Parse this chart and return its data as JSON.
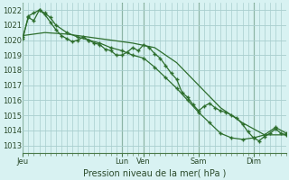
{
  "background_color": "#cce8e8",
  "plot_bg_color": "#d8f2f2",
  "grid_color": "#a8cece",
  "line_color": "#2d6e2d",
  "xlabel_text": "Pression niveau de la mer( hPa )",
  "ylim": [
    1012.5,
    1022.5
  ],
  "yticks": [
    1013,
    1014,
    1015,
    1016,
    1017,
    1018,
    1019,
    1020,
    1021,
    1022
  ],
  "day_labels": [
    "Jeu",
    "Lun",
    "Ven",
    "Sam",
    "Dim"
  ],
  "day_positions": [
    0,
    108,
    132,
    192,
    252
  ],
  "total_hours": 288,
  "vline_color": "#4a7a4a",
  "series1_x": [
    0,
    6,
    12,
    18,
    24,
    30,
    36,
    42,
    48,
    54,
    60,
    66,
    72,
    78,
    84,
    90,
    96,
    102,
    108,
    114,
    120,
    126,
    132,
    138,
    144,
    150,
    156,
    162,
    168,
    174,
    180,
    186,
    192,
    198,
    204,
    210,
    216,
    222,
    228,
    234,
    240,
    246,
    252,
    258,
    264,
    270,
    276,
    282,
    288
  ],
  "series1_y": [
    1020.2,
    1021.5,
    1021.3,
    1022.0,
    1021.7,
    1021.2,
    1020.7,
    1020.3,
    1020.1,
    1019.9,
    1020.0,
    1020.2,
    1020.0,
    1019.8,
    1019.7,
    1019.4,
    1019.3,
    1019.0,
    1019.0,
    1019.2,
    1019.5,
    1019.3,
    1019.7,
    1019.5,
    1019.1,
    1018.8,
    1018.3,
    1017.8,
    1017.4,
    1016.5,
    1016.2,
    1015.7,
    1015.3,
    1015.6,
    1015.8,
    1015.5,
    1015.3,
    1015.2,
    1015.0,
    1014.8,
    1014.4,
    1013.9,
    1013.5,
    1013.3,
    1013.6,
    1013.8,
    1014.1,
    1013.8,
    1013.7
  ],
  "series2_x": [
    0,
    24,
    48,
    72,
    96,
    120,
    144,
    168,
    192,
    216,
    240,
    264,
    288
  ],
  "series2_y": [
    1020.3,
    1020.5,
    1020.4,
    1020.2,
    1020.0,
    1019.8,
    1019.5,
    1018.5,
    1017.0,
    1015.5,
    1014.5,
    1013.7,
    1013.7
  ],
  "series3_x": [
    0,
    6,
    12,
    18,
    24,
    30,
    36,
    48,
    60,
    72,
    84,
    96,
    108,
    120,
    132,
    144,
    156,
    168,
    180,
    192,
    204,
    216,
    228,
    240,
    252,
    264,
    276,
    288
  ],
  "series3_y": [
    1020.1,
    1021.6,
    1021.8,
    1022.0,
    1021.8,
    1021.5,
    1021.0,
    1020.5,
    1020.2,
    1020.0,
    1019.8,
    1019.5,
    1019.3,
    1019.0,
    1018.8,
    1018.2,
    1017.5,
    1016.8,
    1016.0,
    1015.2,
    1014.5,
    1013.8,
    1013.5,
    1013.4,
    1013.5,
    1013.7,
    1014.2,
    1013.8
  ]
}
